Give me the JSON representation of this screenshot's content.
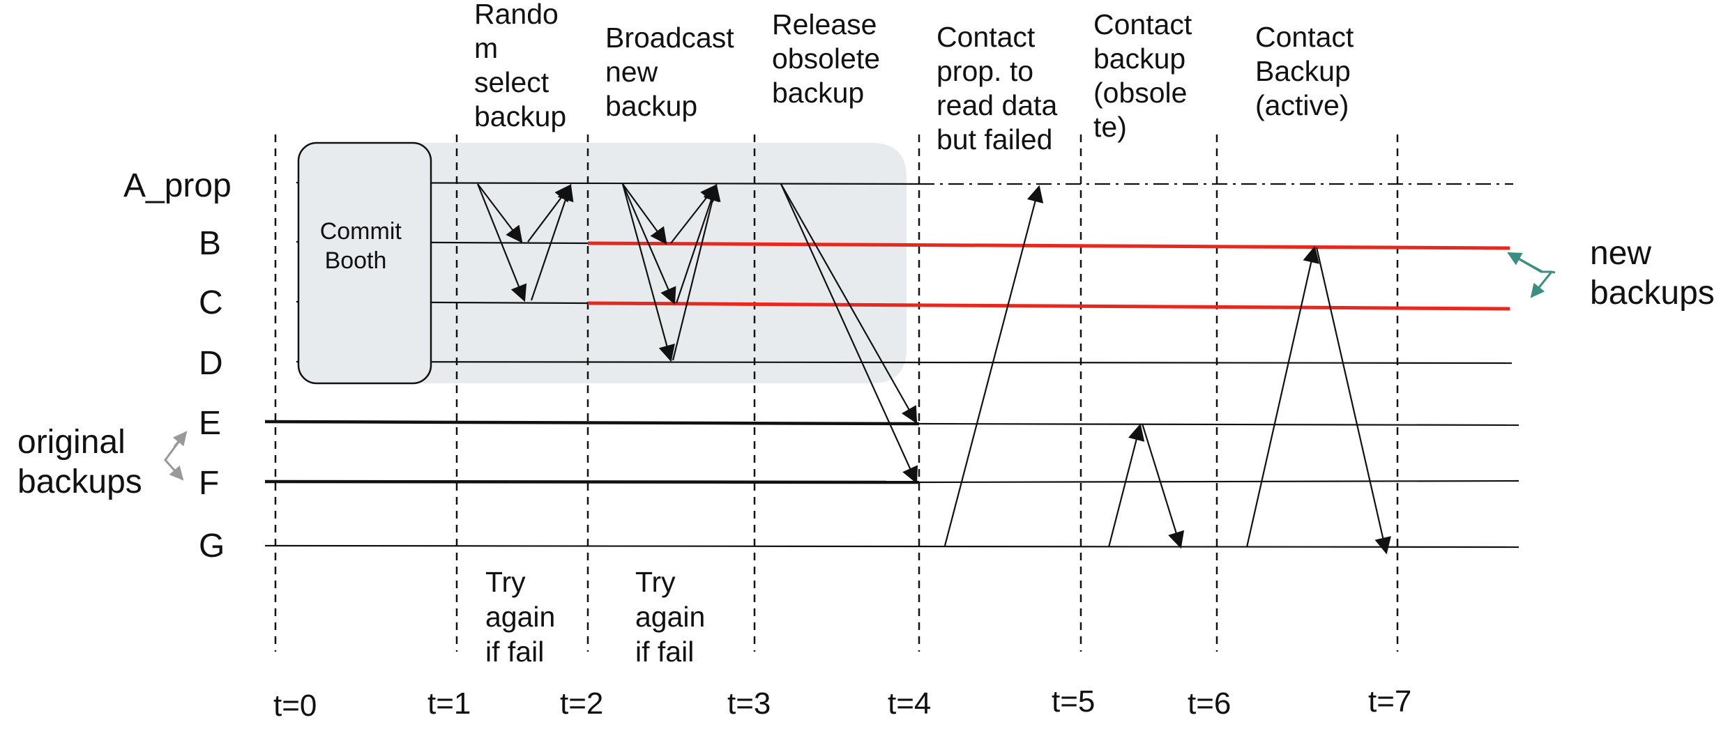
{
  "nodes": [
    "A_prop",
    "B",
    "C",
    "D",
    "E",
    "F",
    "G"
  ],
  "time_labels": [
    "t=0",
    "t=1",
    "t=2",
    "t=3",
    "t=4",
    "t=5",
    "t=6",
    "t=7"
  ],
  "phases": [
    {
      "lines": [
        "Rando",
        "m",
        "select",
        "backup"
      ]
    },
    {
      "lines": [
        "Broadcast",
        "new",
        "backup"
      ]
    },
    {
      "lines": [
        "Release",
        "obsolete",
        "backup"
      ]
    },
    {
      "lines": [
        "Contact",
        "prop. to",
        "read data",
        "but failed"
      ]
    },
    {
      "lines": [
        "Contact",
        "backup",
        "(obsole",
        "te)"
      ]
    },
    {
      "lines": [
        "Contact",
        "Backup",
        "(active)"
      ]
    }
  ],
  "retry_notes": [
    {
      "lines": [
        "Try",
        "again",
        "if fail"
      ]
    },
    {
      "lines": [
        "Try",
        "again",
        "if fail"
      ]
    }
  ],
  "booth": {
    "lines": [
      "Commit",
      "Booth"
    ]
  },
  "legend_original": {
    "lines": [
      "original",
      "backups"
    ]
  },
  "legend_new": {
    "lines": [
      "new",
      "backups"
    ]
  },
  "colors": {
    "new_backup_line": "#e8281e",
    "shaded_region": "#e8ebed",
    "new_backup_marker": "#3a8f80",
    "original_backup_marker": "#999999",
    "line": "#111111"
  }
}
